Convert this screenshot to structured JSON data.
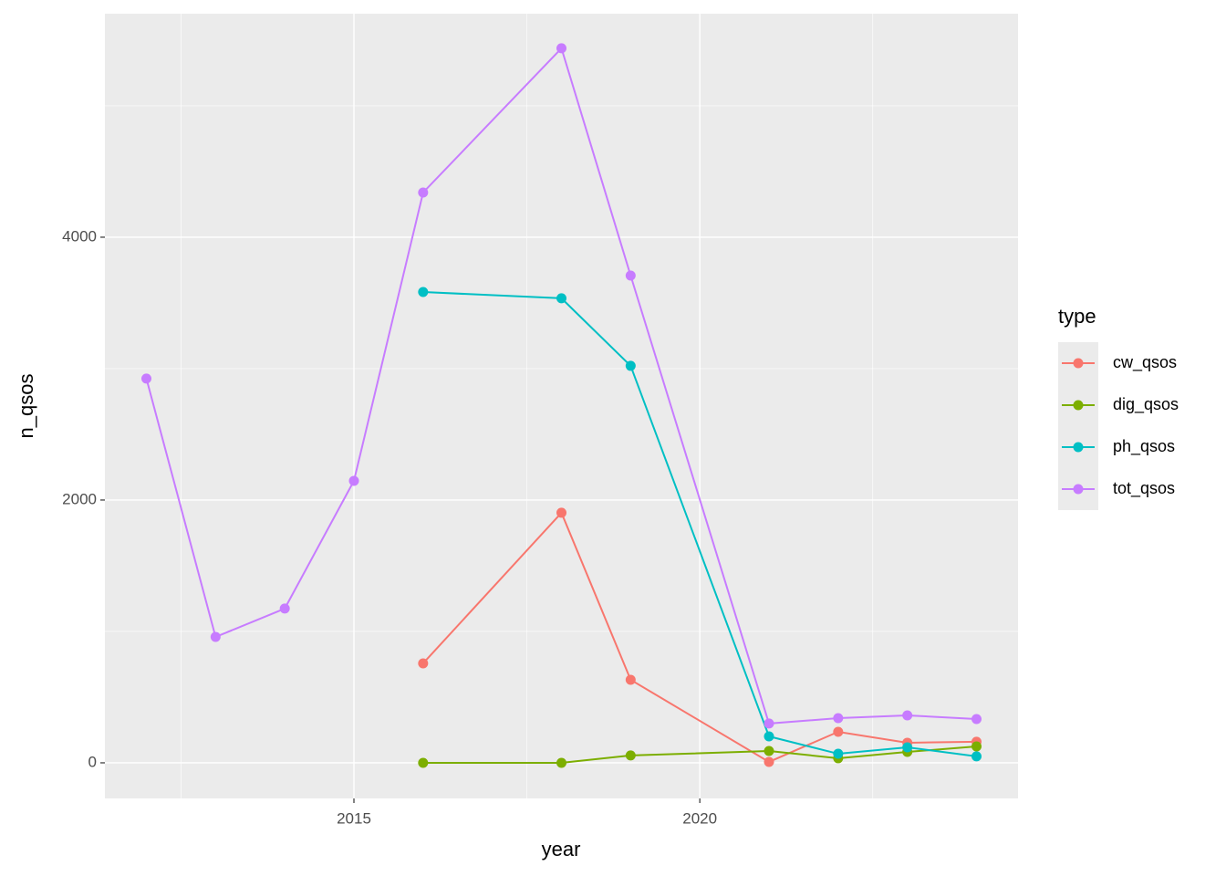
{
  "chart_data": {
    "type": "line",
    "x_label": "year",
    "y_label": "n_qsos",
    "legend_title": "type",
    "x": [
      2012,
      2013,
      2014,
      2015,
      2016,
      2018,
      2019,
      2021,
      2022,
      2023,
      2024
    ],
    "series": [
      {
        "name": "cw_qsos",
        "color": "#F8766D",
        "values": [
          null,
          null,
          null,
          null,
          757,
          1903,
          632,
          7,
          236,
          153,
          160
        ]
      },
      {
        "name": "dig_qsos",
        "color": "#7CAE00",
        "values": [
          null,
          null,
          null,
          null,
          0,
          0,
          56,
          90,
          35,
          83,
          125
        ]
      },
      {
        "name": "ph_qsos",
        "color": "#00BFC4",
        "values": [
          null,
          null,
          null,
          null,
          3583,
          3535,
          3021,
          201,
          69,
          118,
          49
        ]
      },
      {
        "name": "tot_qsos",
        "color": "#C77CFF",
        "values": [
          2924,
          958,
          1174,
          2146,
          4340,
          5438,
          3708,
          299,
          340,
          361,
          333
        ]
      }
    ],
    "xlim": [
      2011.4,
      2024.6
    ],
    "ylim": [
      -271,
      5701
    ],
    "xticks": [
      2015,
      2020
    ],
    "yticks": [
      0,
      2000,
      4000
    ],
    "xminor": [
      2012.5,
      2017.5,
      2022.5
    ],
    "yminor": [
      1000,
      3000,
      5000
    ],
    "grid": true,
    "legend": "right"
  }
}
